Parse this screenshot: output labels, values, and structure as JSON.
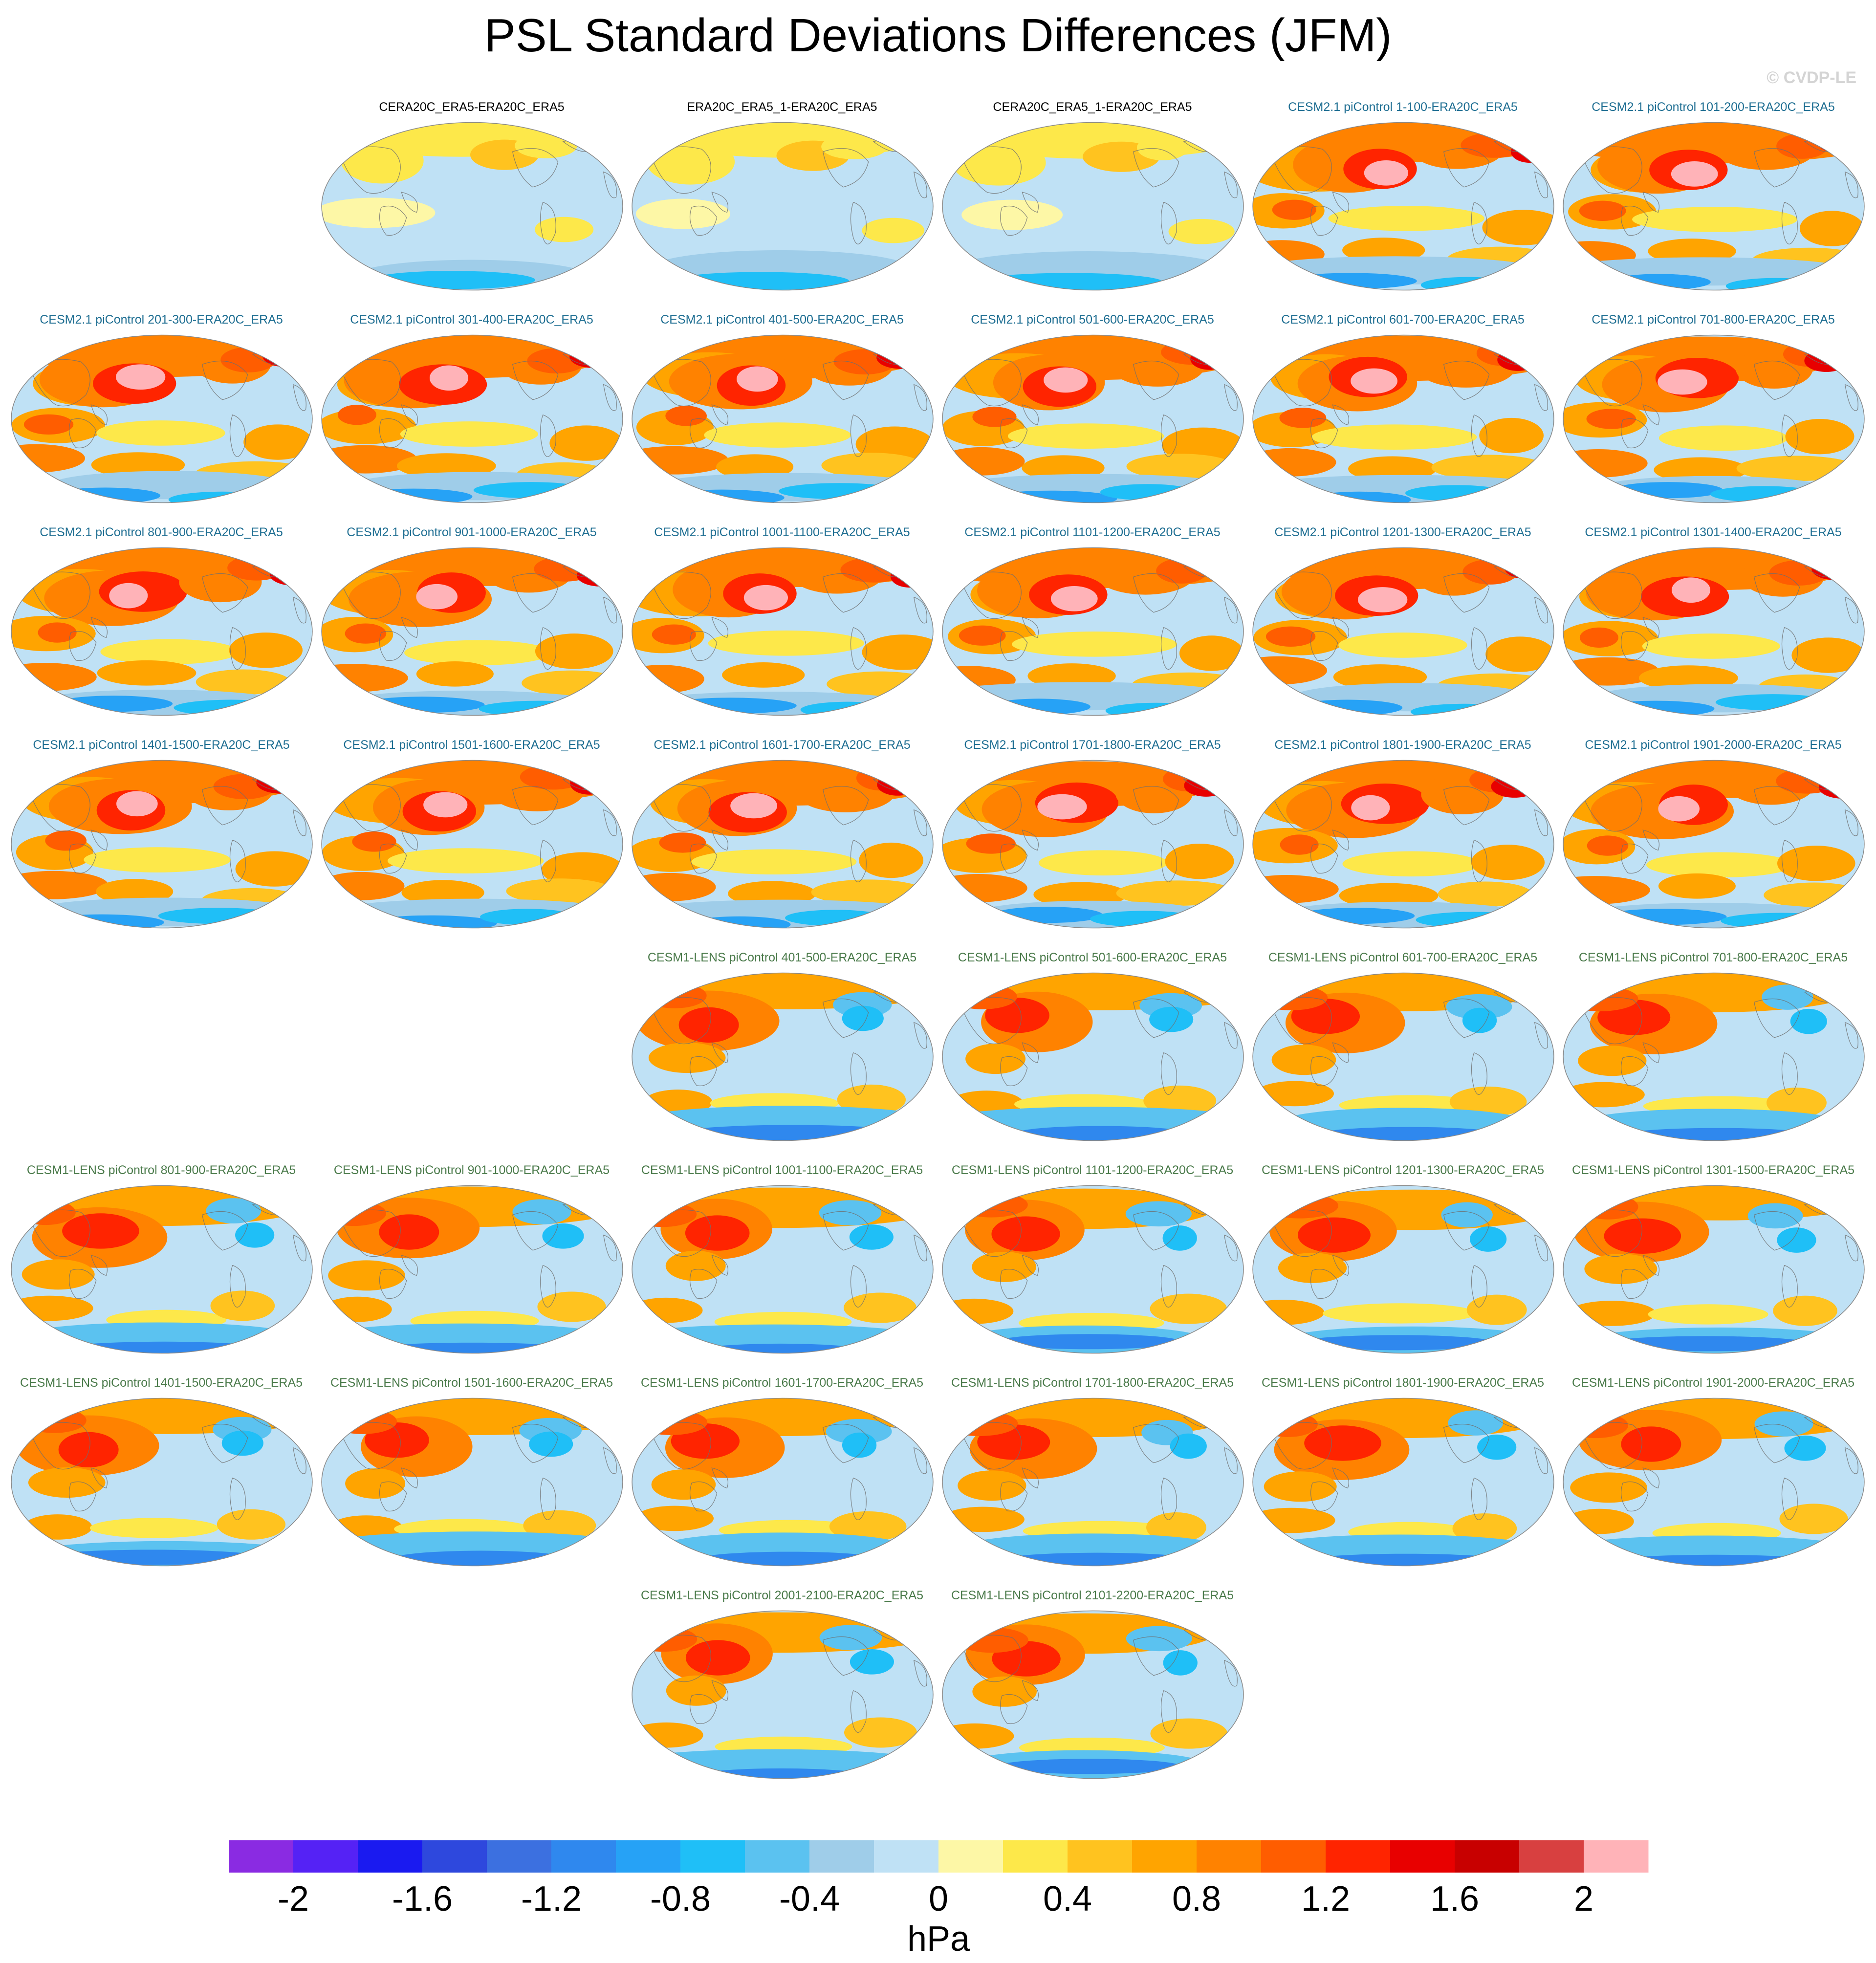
{
  "title": "PSL Standard Deviations Differences (JFM)",
  "watermark": "© CVDP-LE",
  "chart_data": {
    "type": "heatmap",
    "title": "PSL Standard Deviations Differences (JFM)",
    "colorbar": {
      "label": "hPa",
      "tick_labels": [
        "-2",
        "-1.6",
        "-1.2",
        "-0.8",
        "-0.4",
        "0",
        "0.4",
        "0.8",
        "1.2",
        "1.6",
        "2"
      ],
      "levels": [
        -2.2,
        -2.0,
        -1.8,
        -1.6,
        -1.4,
        -1.2,
        -1.0,
        -0.8,
        -0.6,
        -0.4,
        -0.2,
        0,
        0.2,
        0.4,
        0.6,
        0.8,
        1.0,
        1.2,
        1.4,
        1.6,
        1.8,
        2.0,
        2.2
      ],
      "colors": [
        "#8a2be2",
        "#5522f5",
        "#1a1af0",
        "#2e48dd",
        "#3c70e0",
        "#2f88ee",
        "#26a2f6",
        "#1fbff7",
        "#5bc2f0",
        "#9fcde9",
        "#bfe1f5",
        "#fdf7a6",
        "#fde84a",
        "#ffc31f",
        "#ffa400",
        "#ff8200",
        "#ff5d00",
        "#ff2400",
        "#e80000",
        "#c80000",
        "#d84040",
        "#ffb3b8"
      ]
    },
    "panel_colors": {
      "reanalysis": "#000000",
      "cesm2": "#1e6e92",
      "cesm1": "#4a7a4a"
    },
    "panels": [
      {
        "title": "CERA20C_ERA5-ERA20C_ERA5",
        "group": "reanalysis",
        "variant": "weak"
      },
      {
        "title": "ERA20C_ERA5_1-ERA20C_ERA5",
        "group": "reanalysis",
        "variant": "weak"
      },
      {
        "title": "CERA20C_ERA5_1-ERA20C_ERA5",
        "group": "reanalysis",
        "variant": "weak"
      },
      {
        "title": "CESM2.1 piControl 1-100-ERA20C_ERA5",
        "group": "cesm2",
        "variant": "strong"
      },
      {
        "title": "CESM2.1 piControl 101-200-ERA20C_ERA5",
        "group": "cesm2",
        "variant": "strong"
      },
      {
        "title": "CESM2.1 piControl 201-300-ERA20C_ERA5",
        "group": "cesm2",
        "variant": "strong"
      },
      {
        "title": "CESM2.1 piControl 301-400-ERA20C_ERA5",
        "group": "cesm2",
        "variant": "strong"
      },
      {
        "title": "CESM2.1 piControl 401-500-ERA20C_ERA5",
        "group": "cesm2",
        "variant": "strong"
      },
      {
        "title": "CESM2.1 piControl 501-600-ERA20C_ERA5",
        "group": "cesm2",
        "variant": "strong"
      },
      {
        "title": "CESM2.1 piControl 601-700-ERA20C_ERA5",
        "group": "cesm2",
        "variant": "strong"
      },
      {
        "title": "CESM2.1 piControl 701-800-ERA20C_ERA5",
        "group": "cesm2",
        "variant": "strong"
      },
      {
        "title": "CESM2.1 piControl 801-900-ERA20C_ERA5",
        "group": "cesm2",
        "variant": "strong"
      },
      {
        "title": "CESM2.1 piControl 901-1000-ERA20C_ERA5",
        "group": "cesm2",
        "variant": "strong"
      },
      {
        "title": "CESM2.1 piControl 1001-1100-ERA20C_ERA5",
        "group": "cesm2",
        "variant": "strong"
      },
      {
        "title": "CESM2.1 piControl 1101-1200-ERA20C_ERA5",
        "group": "cesm2",
        "variant": "strong"
      },
      {
        "title": "CESM2.1 piControl 1201-1300-ERA20C_ERA5",
        "group": "cesm2",
        "variant": "strong"
      },
      {
        "title": "CESM2.1 piControl 1301-1400-ERA20C_ERA5",
        "group": "cesm2",
        "variant": "strong"
      },
      {
        "title": "CESM2.1 piControl 1401-1500-ERA20C_ERA5",
        "group": "cesm2",
        "variant": "strong"
      },
      {
        "title": "CESM2.1 piControl 1501-1600-ERA20C_ERA5",
        "group": "cesm2",
        "variant": "strong"
      },
      {
        "title": "CESM2.1 piControl 1601-1700-ERA20C_ERA5",
        "group": "cesm2",
        "variant": "strong"
      },
      {
        "title": "CESM2.1 piControl 1701-1800-ERA20C_ERA5",
        "group": "cesm2",
        "variant": "strong"
      },
      {
        "title": "CESM2.1 piControl 1801-1900-ERA20C_ERA5",
        "group": "cesm2",
        "variant": "strong"
      },
      {
        "title": "CESM2.1 piControl 1901-2000-ERA20C_ERA5",
        "group": "cesm2",
        "variant": "strong"
      },
      {
        "title": "CESM1-LENS piControl 401-500-ERA20C_ERA5",
        "group": "cesm1",
        "variant": "lens"
      },
      {
        "title": "CESM1-LENS piControl 501-600-ERA20C_ERA5",
        "group": "cesm1",
        "variant": "lens"
      },
      {
        "title": "CESM1-LENS piControl 601-700-ERA20C_ERA5",
        "group": "cesm1",
        "variant": "lens"
      },
      {
        "title": "CESM1-LENS piControl 701-800-ERA20C_ERA5",
        "group": "cesm1",
        "variant": "lens"
      },
      {
        "title": "CESM1-LENS piControl 801-900-ERA20C_ERA5",
        "group": "cesm1",
        "variant": "lens"
      },
      {
        "title": "CESM1-LENS piControl 901-1000-ERA20C_ERA5",
        "group": "cesm1",
        "variant": "lens"
      },
      {
        "title": "CESM1-LENS piControl 1001-1100-ERA20C_ERA5",
        "group": "cesm1",
        "variant": "lens"
      },
      {
        "title": "CESM1-LENS piControl 1101-1200-ERA20C_ERA5",
        "group": "cesm1",
        "variant": "lens"
      },
      {
        "title": "CESM1-LENS piControl 1201-1300-ERA20C_ERA5",
        "group": "cesm1",
        "variant": "lens"
      },
      {
        "title": "CESM1-LENS piControl 1301-1500-ERA20C_ERA5",
        "group": "cesm1",
        "variant": "lens"
      },
      {
        "title": "CESM1-LENS piControl 1401-1500-ERA20C_ERA5",
        "group": "cesm1",
        "variant": "lens"
      },
      {
        "title": "CESM1-LENS piControl 1501-1600-ERA20C_ERA5",
        "group": "cesm1",
        "variant": "lens"
      },
      {
        "title": "CESM1-LENS piControl 1601-1700-ERA20C_ERA5",
        "group": "cesm1",
        "variant": "lens"
      },
      {
        "title": "CESM1-LENS piControl 1701-1800-ERA20C_ERA5",
        "group": "cesm1",
        "variant": "lens"
      },
      {
        "title": "CESM1-LENS piControl 1801-1900-ERA20C_ERA5",
        "group": "cesm1",
        "variant": "lens"
      },
      {
        "title": "CESM1-LENS piControl 1901-2000-ERA20C_ERA5",
        "group": "cesm1",
        "variant": "lens"
      },
      {
        "title": "CESM1-LENS piControl 2001-2100-ERA20C_ERA5",
        "group": "cesm1",
        "variant": "lens"
      },
      {
        "title": "CESM1-LENS piControl 2101-2200-ERA20C_ERA5",
        "group": "cesm1",
        "variant": "lens"
      }
    ]
  }
}
